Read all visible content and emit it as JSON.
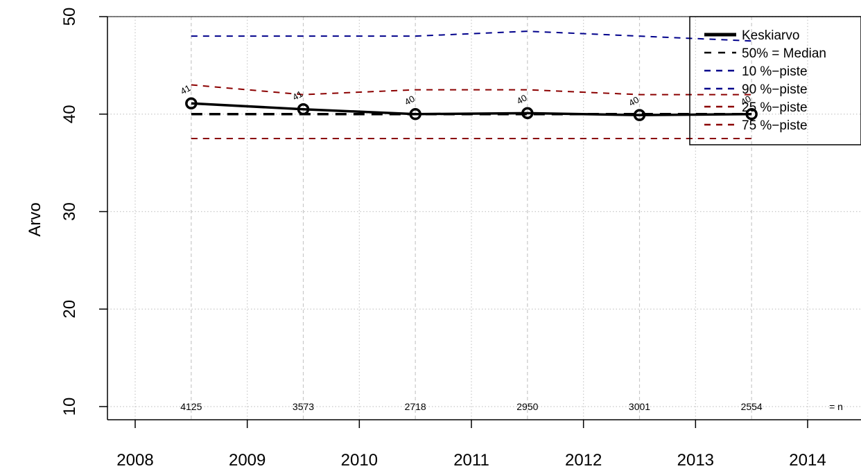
{
  "chart_data": {
    "type": "line",
    "title": "",
    "xlabel": "",
    "ylabel": "Arvo",
    "xlim": [
      2007.75,
      2014.5
    ],
    "ylim": [
      8.8,
      50
    ],
    "x_ticks": [
      "2008",
      "2009",
      "2010",
      "2011",
      "2012",
      "2013",
      "2014"
    ],
    "x_tick_values": [
      2008,
      2009,
      2010,
      2011,
      2012,
      2013,
      2014
    ],
    "y_ticks": [
      "10",
      "20",
      "30",
      "40",
      "50"
    ],
    "y_tick_values": [
      10,
      20,
      30,
      40,
      50
    ],
    "grid": true,
    "x": [
      2008.5,
      2009.5,
      2010.5,
      2011.5,
      2012.5,
      2013.5
    ],
    "series": [
      {
        "name": "Keskiarvo",
        "values": [
          41.1,
          40.5,
          40.0,
          40.1,
          39.9,
          40.0
        ],
        "color": "#000000",
        "style": "solid",
        "markers": true,
        "value_labels": [
          "41",
          "41",
          "40",
          "40",
          "40",
          "40"
        ]
      },
      {
        "name": "50% = Median",
        "values": [
          40,
          40,
          40,
          40,
          40,
          40
        ],
        "color": "#000000",
        "style": "dashed"
      },
      {
        "name": "10 %−piste",
        "values": [
          37.5,
          37.5,
          37.5,
          37.5,
          37.5,
          37.5
        ],
        "color": "#00008b",
        "style": "dashed"
      },
      {
        "name": "90 %−piste",
        "values": [
          48,
          48,
          48,
          48.5,
          48,
          47.5
        ],
        "color": "#00008b",
        "style": "dashed"
      },
      {
        "name": "25 %−piste",
        "values": [
          37.5,
          37.5,
          37.5,
          37.5,
          37.5,
          37.5
        ],
        "color": "#8b0000",
        "style": "dashed"
      },
      {
        "name": "75 %−piste",
        "values": [
          43,
          42,
          42.5,
          42.5,
          42,
          42
        ],
        "color": "#8b0000",
        "style": "dashed"
      }
    ],
    "n_values": [
      "4125",
      "3573",
      "2718",
      "2950",
      "3001",
      "2554"
    ],
    "n_label": "= n",
    "legend_position": "top-right"
  }
}
